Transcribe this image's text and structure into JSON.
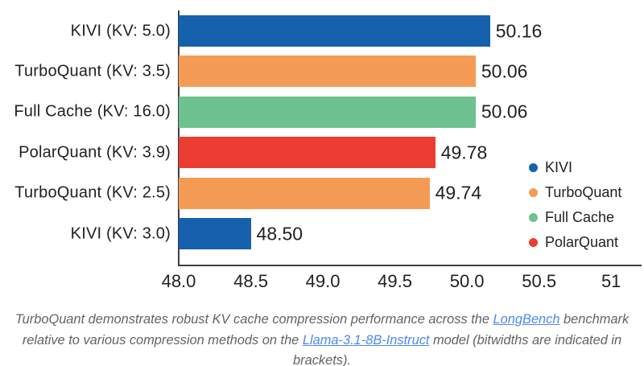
{
  "chart_data": {
    "type": "bar",
    "orientation": "horizontal",
    "bars": [
      {
        "category": "KIVI (KV: 5.0)",
        "value": 50.16,
        "label": "50.16",
        "series": "KIVI"
      },
      {
        "category": "TurboQuant (KV: 3.5)",
        "value": 50.06,
        "label": "50.06",
        "series": "TurboQuant"
      },
      {
        "category": "Full Cache (KV: 16.0)",
        "value": 50.06,
        "label": "50.06",
        "series": "Full Cache"
      },
      {
        "category": "PolarQuant (KV: 3.9)",
        "value": 49.78,
        "label": "49.78",
        "series": "PolarQuant"
      },
      {
        "category": "TurboQuant (KV: 2.5)",
        "value": 49.74,
        "label": "49.74",
        "series": "TurboQuant"
      },
      {
        "category": "KIVI (KV: 3.0)",
        "value": 48.5,
        "label": "48.50",
        "series": "KIVI"
      }
    ],
    "series_colors": {
      "KIVI": "#1561ae",
      "TurboQuant": "#f49c55",
      "Full Cache": "#6dc28f",
      "PolarQuant": "#ec3d33"
    },
    "legend": [
      "KIVI",
      "TurboQuant",
      "Full Cache",
      "PolarQuant"
    ],
    "legend_position": "right-middle",
    "xlim": [
      48.0,
      51.2
    ],
    "x_ticks": [
      {
        "value": 48.0,
        "label": "48.0"
      },
      {
        "value": 48.5,
        "label": "48.5"
      },
      {
        "value": 49.0,
        "label": "49.0"
      },
      {
        "value": 49.5,
        "label": "49.5"
      },
      {
        "value": 50.0,
        "label": "50.0"
      },
      {
        "value": 50.5,
        "label": "50.5"
      },
      {
        "value": 51.0,
        "label": "51"
      }
    ],
    "grid": false,
    "title": "",
    "xlabel": "",
    "ylabel": ""
  },
  "caption": {
    "part1": "TurboQuant demonstrates robust KV cache compression performance across the ",
    "link1": "LongBench",
    "part2": " benchmark relative to various compression methods on the ",
    "link2": "Llama-3.1-8B-Instruct",
    "part3": " model (bitwidths are indicated in brackets)."
  },
  "colors": {
    "axis": "#3c4043",
    "chart_text": "#202124",
    "caption_text": "#5f6368",
    "link": "#4b88f4",
    "background": "#ffffff"
  }
}
